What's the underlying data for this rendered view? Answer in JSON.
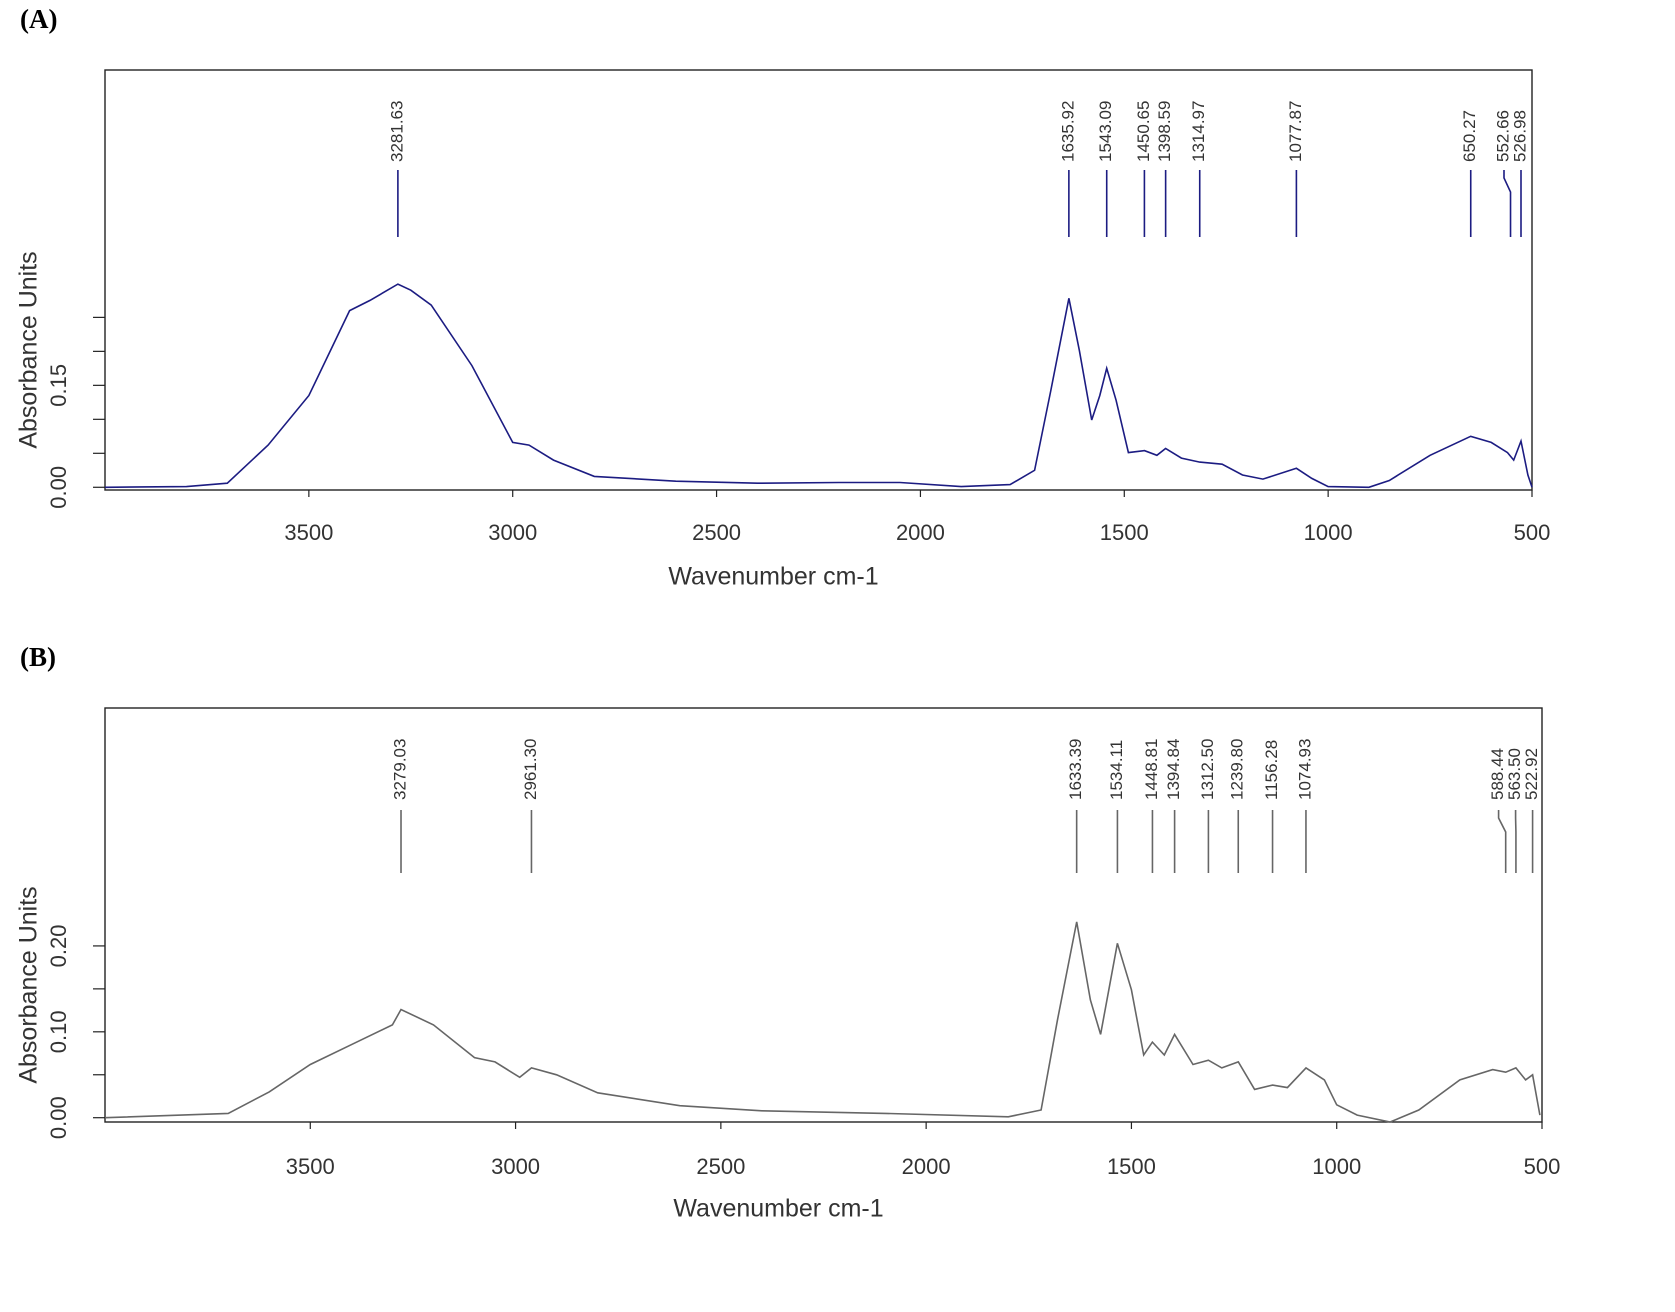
{
  "chart_data": [
    {
      "type": "line",
      "title": "(A)",
      "xlabel": "Wavenumber cm-1",
      "ylabel": "Absorbance Units",
      "xlim": [
        4000,
        500
      ],
      "ylim": [
        -0.004,
        0.614
      ],
      "xticks": [
        3500,
        3000,
        2500,
        2000,
        1500,
        1000,
        500
      ],
      "yticks": [
        {
          "value": 0,
          "label": "0.00"
        },
        {
          "value": 0.15,
          "label": "0.15"
        }
      ],
      "yminorticks": [
        0.05,
        0.1,
        0.2,
        0.25
      ],
      "color": "#1c1c82",
      "x": [
        4000,
        3800,
        3700,
        3600,
        3500,
        3400,
        3350,
        3281.63,
        3250,
        3200,
        3100,
        3000,
        2960,
        2900,
        2800,
        2600,
        2400,
        2200,
        2050,
        1900,
        1780,
        1720,
        1680,
        1635.92,
        1610,
        1580,
        1560,
        1543.09,
        1520,
        1490,
        1450.65,
        1420,
        1398.59,
        1360,
        1314.97,
        1260,
        1210,
        1160,
        1077.87,
        1040,
        1000,
        900,
        850,
        750,
        650.27,
        600,
        560,
        545,
        526.98,
        510,
        500
      ],
      "values": [
        0.0,
        0.001,
        0.006,
        0.062,
        0.135,
        0.26,
        0.275,
        0.299,
        0.29,
        0.268,
        0.179,
        0.066,
        0.062,
        0.04,
        0.016,
        0.009,
        0.006,
        0.007,
        0.007,
        0.001,
        0.004,
        0.025,
        0.143,
        0.278,
        0.201,
        0.099,
        0.135,
        0.175,
        0.128,
        0.051,
        0.054,
        0.047,
        0.057,
        0.043,
        0.037,
        0.034,
        0.018,
        0.012,
        0.028,
        0.013,
        0.001,
        0.0,
        0.01,
        0.047,
        0.075,
        0.066,
        0.051,
        0.04,
        0.068,
        0.018,
        0.0
      ],
      "peaks": [
        {
          "value": 3281.63,
          "label": "3281.63"
        },
        {
          "value": 1635.92,
          "label": "1635.92"
        },
        {
          "value": 1543.09,
          "label": "1543.09"
        },
        {
          "value": 1450.65,
          "label": "1450.65"
        },
        {
          "value": 1398.59,
          "label": "1398.59"
        },
        {
          "value": 1314.97,
          "label": "1314.97"
        },
        {
          "value": 1077.87,
          "label": "1077.87"
        },
        {
          "value": 650.27,
          "label": "650.27"
        },
        {
          "value": 552.66,
          "label": "552.66"
        },
        {
          "value": 526.98,
          "label": "526.98"
        }
      ]
    },
    {
      "type": "line",
      "title": "(B)",
      "xlabel": "Wavenumber cm-1",
      "ylabel": "Absorbance Units",
      "xlim": [
        4000,
        500
      ],
      "ylim": [
        -0.005,
        0.477
      ],
      "xticks": [
        3500,
        3000,
        2500,
        2000,
        1500,
        1000,
        500
      ],
      "yticks": [
        {
          "value": 0,
          "label": "0.00"
        },
        {
          "value": 0.1,
          "label": "0.10"
        },
        {
          "value": 0.2,
          "label": "0.20"
        }
      ],
      "yminorticks": [
        0.05,
        0.15
      ],
      "color": "#666666",
      "x": [
        4000,
        3700,
        3600,
        3500,
        3400,
        3300,
        3279.03,
        3200,
        3100,
        3050,
        2990,
        2961.3,
        2900,
        2800,
        2600,
        2400,
        2100,
        1800,
        1720,
        1680,
        1633.39,
        1600,
        1575,
        1534.11,
        1500,
        1470,
        1448.81,
        1420,
        1394.84,
        1350,
        1312.5,
        1280,
        1239.8,
        1200,
        1156.28,
        1120,
        1074.93,
        1030,
        1000,
        950,
        870,
        800,
        700,
        620,
        588.44,
        563.5,
        540,
        522.92,
        505
      ],
      "values": [
        0.0,
        0.005,
        0.03,
        0.062,
        0.085,
        0.108,
        0.126,
        0.108,
        0.07,
        0.065,
        0.047,
        0.058,
        0.05,
        0.029,
        0.014,
        0.008,
        0.005,
        0.001,
        0.009,
        0.114,
        0.228,
        0.137,
        0.097,
        0.203,
        0.149,
        0.073,
        0.088,
        0.073,
        0.097,
        0.062,
        0.067,
        0.058,
        0.065,
        0.033,
        0.038,
        0.035,
        0.058,
        0.044,
        0.015,
        0.003,
        -0.005,
        0.009,
        0.044,
        0.056,
        0.053,
        0.058,
        0.044,
        0.05,
        0.003
      ],
      "peaks": [
        {
          "value": 3279.03,
          "label": "3279.03"
        },
        {
          "value": 2961.3,
          "label": "2961.30"
        },
        {
          "value": 1633.39,
          "label": "1633.39"
        },
        {
          "value": 1534.11,
          "label": "1534.11"
        },
        {
          "value": 1448.81,
          "label": "1448.81"
        },
        {
          "value": 1394.84,
          "label": "1394.84"
        },
        {
          "value": 1312.5,
          "label": "1312.50"
        },
        {
          "value": 1239.8,
          "label": "1239.80"
        },
        {
          "value": 1156.28,
          "label": "1156.28"
        },
        {
          "value": 1074.93,
          "label": "1074.93"
        },
        {
          "value": 588.44,
          "label": "588.44"
        },
        {
          "value": 563.5,
          "label": "563.50"
        },
        {
          "value": 522.92,
          "label": "522.92"
        }
      ]
    }
  ]
}
